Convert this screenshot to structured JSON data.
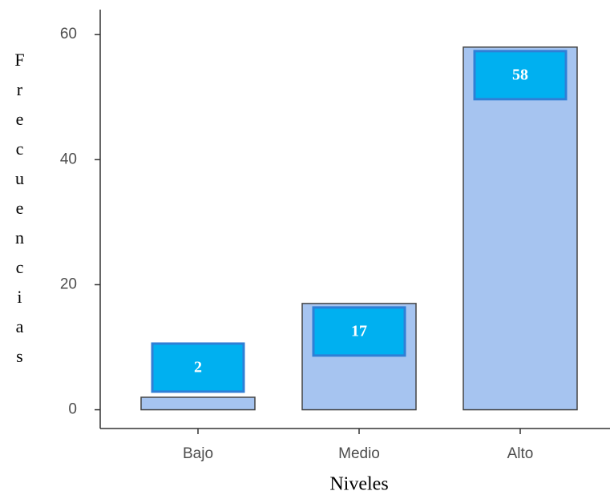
{
  "chart_data": {
    "type": "bar",
    "x_label": "Niveles",
    "y_label": "Frecuencias",
    "categories": [
      "Bajo",
      "Medio",
      "Alto"
    ],
    "values": [
      2,
      17,
      58
    ],
    "color": "#a6c4f0",
    "label_color": "#00b0f0",
    "ylim": [
      -3,
      64
    ],
    "yticks": [
      0,
      20,
      40,
      60
    ],
    "grid": false
  }
}
